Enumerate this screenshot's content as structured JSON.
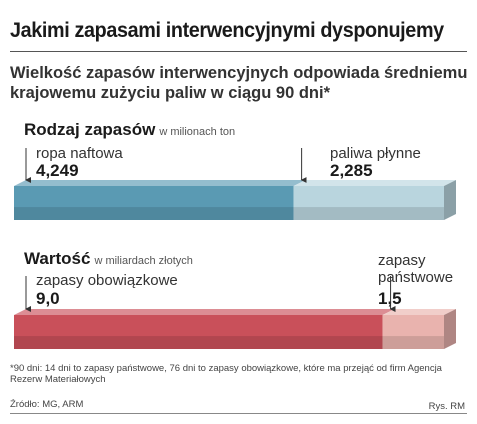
{
  "title": "Jakimi zapasami interwencyjnymi dysponujemy",
  "subtitle": "Wielkość zapasów interwencyjnych odpowiada średniemu krajowemu zużyciu paliw w ciągu 90 dni*",
  "footnote": "*90 dni: 14 dni to zapasy państwowe, 76 dni to zapasy obowiązkowe, które ma przejąć od firm Agencja Rezerw Materiałowych",
  "source": "Źródło: MG, ARM",
  "credit": "Rys. RM",
  "chart_data": [
    {
      "type": "bar",
      "stacked": true,
      "orientation": "horizontal",
      "title": "Rodzaj zapasów",
      "unit": "w milionach ton",
      "categories": [
        "ropa naftowa",
        "paliwa płynne"
      ],
      "values": [
        4.249,
        2.285
      ],
      "value_labels": [
        "4,249",
        "2,285"
      ],
      "colors": [
        "#5a9ab3",
        "#b9d5de"
      ]
    },
    {
      "type": "bar",
      "stacked": true,
      "orientation": "horizontal",
      "title": "Wartość",
      "unit": "w miliardach złotych",
      "categories": [
        "zapasy obowiązkowe",
        "zapasy państwowe"
      ],
      "values": [
        9.0,
        1.5
      ],
      "value_labels": [
        "9,0",
        "1,5"
      ],
      "colors": [
        "#c9505a",
        "#e9b3ae"
      ]
    }
  ]
}
